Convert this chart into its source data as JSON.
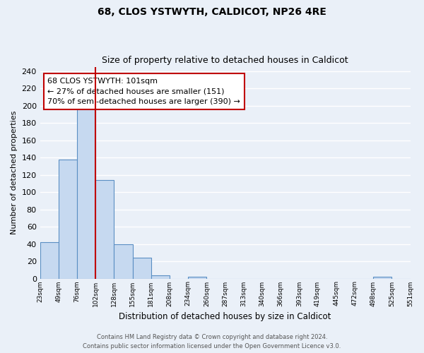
{
  "title1": "68, CLOS YSTWYTH, CALDICOT, NP26 4RE",
  "title2": "Size of property relative to detached houses in Caldicot",
  "xlabel": "Distribution of detached houses by size in Caldicot",
  "ylabel": "Number of detached properties",
  "bar_values": [
    42,
    138,
    202,
    114,
    40,
    24,
    4,
    0,
    2,
    0,
    0,
    0,
    0,
    0,
    0,
    0,
    0,
    0,
    2,
    0
  ],
  "bar_labels": [
    "23sqm",
    "49sqm",
    "76sqm",
    "102sqm",
    "128sqm",
    "155sqm",
    "181sqm",
    "208sqm",
    "234sqm",
    "260sqm",
    "287sqm",
    "313sqm",
    "340sqm",
    "366sqm",
    "393sqm",
    "419sqm",
    "445sqm",
    "472sqm",
    "498sqm",
    "525sqm",
    "551sqm"
  ],
  "bar_color": "#c6d9f0",
  "bar_edge_color": "#5a8fc3",
  "marker_color": "#c00000",
  "annotation_text": "68 CLOS YSTWYTH: 101sqm\n← 27% of detached houses are smaller (151)\n70% of semi-detached houses are larger (390) →",
  "annotation_box_color": "white",
  "annotation_box_edge": "#c00000",
  "ylim": [
    0,
    245
  ],
  "yticks": [
    0,
    20,
    40,
    60,
    80,
    100,
    120,
    140,
    160,
    180,
    200,
    220,
    240
  ],
  "footer1": "Contains HM Land Registry data © Crown copyright and database right 2024.",
  "footer2": "Contains public sector information licensed under the Open Government Licence v3.0.",
  "bg_color": "#eaf0f8",
  "grid_color": "#ffffff",
  "title_fontsize": 10,
  "subtitle_fontsize": 9
}
